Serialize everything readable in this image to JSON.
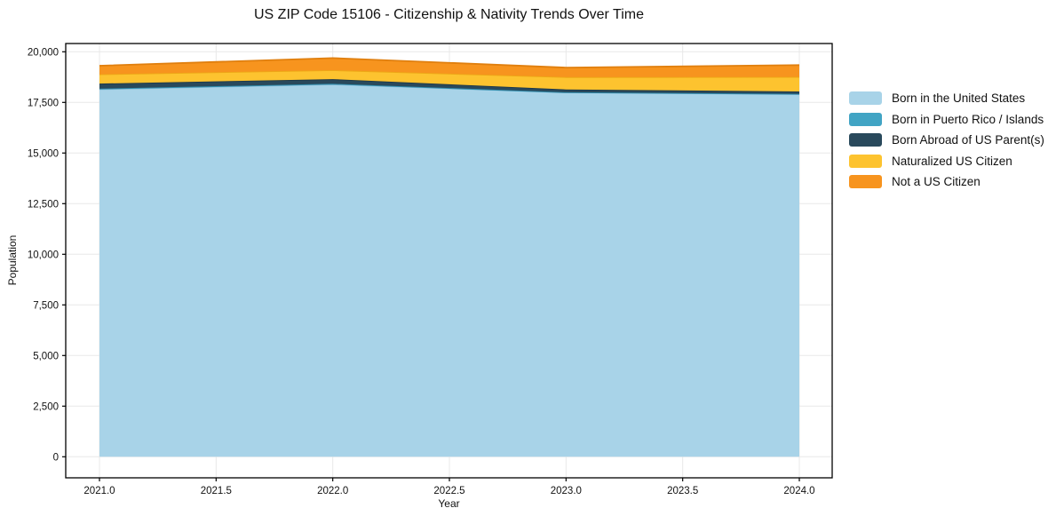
{
  "chart_data": {
    "type": "area",
    "stacked": true,
    "title": "US ZIP Code 15106 - Citizenship & Nativity Trends Over Time",
    "xlabel": "Year",
    "ylabel": "Population",
    "x": [
      2021,
      2022,
      2023,
      2024
    ],
    "xticks": [
      2021.0,
      2021.5,
      2022.0,
      2022.5,
      2023.0,
      2023.5,
      2024.0
    ],
    "yticks": [
      0,
      2500,
      5000,
      7500,
      10000,
      12500,
      15000,
      17500,
      20000
    ],
    "ylim": [
      0,
      20000
    ],
    "grid": true,
    "grid_color": "#e8e8e8",
    "axis_color": "#000000",
    "legend_position": "right",
    "series": [
      {
        "name": "Born in the United States",
        "color": "#a8d3e8",
        "edge_color": "#8abfdc",
        "values": [
          18150,
          18390,
          17990,
          17910
        ]
      },
      {
        "name": "Born in Puerto Rico / Islands",
        "color": "#41a4c4",
        "edge_color": "#2f8cab",
        "values": [
          30,
          30,
          10,
          10
        ]
      },
      {
        "name": "Born Abroad of US Parent(s)",
        "color": "#29495c",
        "edge_color": "#1e3848",
        "values": [
          250,
          230,
          140,
          120
        ]
      },
      {
        "name": "Naturalized US Citizen",
        "color": "#fdc32f",
        "edge_color": "#eda716",
        "values": [
          460,
          440,
          610,
          720
        ]
      },
      {
        "name": "Not a US Citizen",
        "color": "#f7941e",
        "edge_color": "#e07f0e",
        "values": [
          420,
          600,
          470,
          580
        ]
      }
    ]
  }
}
